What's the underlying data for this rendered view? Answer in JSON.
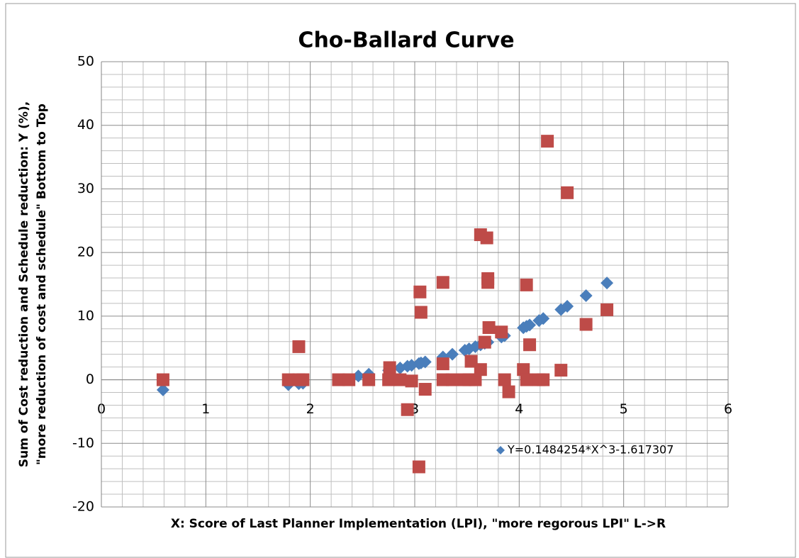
{
  "chart_data": {
    "type": "scatter",
    "title": "Cho-Ballard Curve",
    "x_label": "X: Score of Last Planner Implementation (LPI), \"more regorous LPI\" L->R",
    "y_label": [
      "Sum of Cost reduction and Schedule reduction: Y (%),",
      "\"more reduction of cost and schedule\" Bottom to Top"
    ],
    "xlim": [
      0,
      6
    ],
    "xticks": [
      0,
      1,
      2,
      3,
      4,
      5,
      6
    ],
    "ylim": [
      -20,
      50
    ],
    "yticks": [
      -20,
      -10,
      0,
      10,
      20,
      30,
      40,
      50
    ],
    "grid": true,
    "series": [
      {
        "name": "Y=0.1484254*X^3-1.617307",
        "color": "#4a7ebb",
        "marker": "diamond",
        "x": [
          0.59,
          1.79,
          1.89,
          1.93,
          2.46,
          2.56,
          2.75,
          2.86,
          2.93,
          2.97,
          3.04,
          3.06,
          3.1,
          3.27,
          3.36,
          3.48,
          3.52,
          3.58,
          3.63,
          3.67,
          3.7,
          3.83,
          3.86,
          4.04,
          4.07,
          4.1,
          4.19,
          4.23,
          4.4,
          4.46,
          4.64,
          4.84
        ],
        "values": [
          -1.59,
          -0.77,
          -0.62,
          -0.55,
          0.59,
          0.87,
          1.47,
          1.85,
          2.12,
          2.27,
          2.55,
          2.64,
          2.8,
          3.57,
          4.01,
          4.64,
          4.86,
          5.19,
          5.48,
          5.72,
          5.9,
          6.72,
          6.92,
          8.17,
          8.39,
          8.61,
          9.3,
          9.62,
          11.03,
          11.55,
          13.21,
          15.21
        ]
      },
      {
        "color": "#be4b48",
        "marker": "square",
        "x": [
          0.59,
          1.79,
          1.89,
          1.89,
          1.93,
          2.27,
          2.37,
          2.56,
          2.76,
          2.75,
          2.86,
          2.93,
          2.97,
          3.04,
          3.05,
          3.06,
          3.1,
          3.27,
          3.27,
          3.27,
          3.36,
          3.48,
          3.52,
          3.54,
          3.58,
          3.63,
          3.63,
          3.67,
          3.69,
          3.7,
          3.7,
          3.71,
          3.83,
          3.86,
          3.9,
          4.04,
          4.07,
          4.07,
          4.1,
          4.19,
          4.23,
          4.27,
          4.4,
          4.46,
          4.64,
          4.84
        ],
        "values": [
          0,
          0,
          5.2,
          0,
          0,
          0,
          0,
          0,
          1.9,
          0,
          0,
          -4.7,
          -0.2,
          -13.7,
          13.8,
          10.6,
          -1.5,
          15.3,
          2.5,
          0,
          0,
          0,
          0,
          2.9,
          0,
          22.8,
          1.6,
          5.9,
          22.3,
          15.9,
          15.3,
          8.2,
          7.5,
          0,
          -1.9,
          1.6,
          14.9,
          0,
          5.5,
          0,
          0,
          37.5,
          1.5,
          29.4,
          8.7,
          11.0
        ]
      }
    ]
  }
}
